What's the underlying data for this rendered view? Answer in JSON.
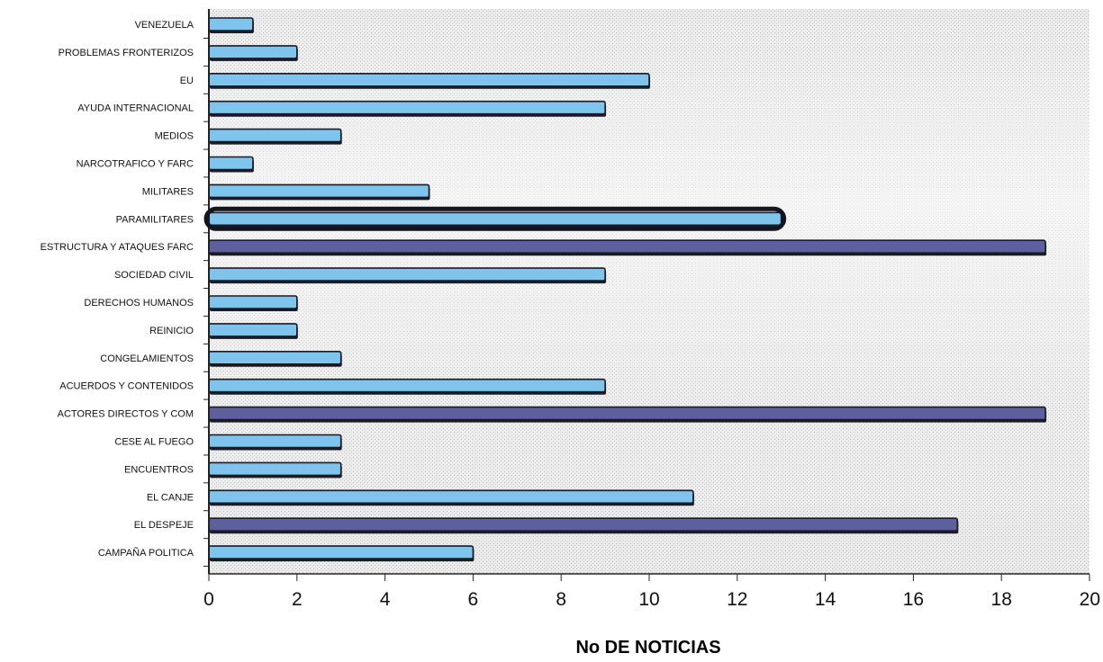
{
  "chart_data": {
    "type": "bar",
    "orientation": "horizontal",
    "title": "",
    "xlabel": "No DE NOTICIAS",
    "ylabel": "",
    "xlim": [
      0,
      20
    ],
    "xticks": [
      0,
      2,
      4,
      6,
      8,
      10,
      12,
      14,
      16,
      18,
      20
    ],
    "grid": false,
    "legend": "none",
    "categories": [
      "VENEZUELA",
      "PROBLEMAS FRONTERIZOS",
      "EU",
      "AYUDA INTERNACIONAL",
      "MEDIOS",
      "NARCOTRAFICO Y FARC",
      "MILITARES",
      "PARAMILITARES",
      "ESTRUCTURA Y ATAQUES FARC",
      "SOCIEDAD CIVIL",
      "DERECHOS HUMANOS",
      "REINICIO",
      "CONGELAMIENTOS",
      "ACUERDOS Y CONTENIDOS",
      "ACTORES DIRECTOS Y COM",
      "CESE AL FUEGO",
      "ENCUENTROS",
      "EL CANJE",
      "EL DESPEJE",
      "CAMPAÑA POLITICA"
    ],
    "values": [
      1,
      2,
      10,
      9,
      3,
      1,
      5,
      13,
      19,
      9,
      2,
      2,
      3,
      9,
      19,
      3,
      3,
      11,
      17,
      6
    ],
    "bar_colors": [
      "#7fc4ec",
      "#7fc4ec",
      "#7fc4ec",
      "#7fc4ec",
      "#7fc4ec",
      "#7fc4ec",
      "#7fc4ec",
      "#7fc4ec",
      "#5e5f9e",
      "#7fc4ec",
      "#7fc4ec",
      "#7fc4ec",
      "#7fc4ec",
      "#7fc4ec",
      "#5e5f9e",
      "#7fc4ec",
      "#7fc4ec",
      "#7fc4ec",
      "#5e5f9e",
      "#7fc4ec"
    ],
    "highlighted_category": "PARAMILITARES",
    "colors": {
      "bar_light": "#7fc4ec",
      "bar_dark": "#5e5f9e",
      "outline": "#1a1a24",
      "background": "#e9e9e9"
    }
  }
}
